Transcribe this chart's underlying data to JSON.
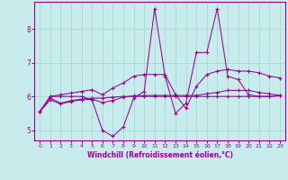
{
  "xlabel": "Windchill (Refroidissement éolien,°C)",
  "bg_color": "#c8ecec",
  "grid_color": "#a8d8d8",
  "line_color": "#990099",
  "xlim": [
    -0.5,
    23.5
  ],
  "ylim": [
    4.7,
    8.8
  ],
  "yticks": [
    5,
    6,
    7,
    8
  ],
  "xticks": [
    0,
    1,
    2,
    3,
    4,
    5,
    6,
    7,
    8,
    9,
    10,
    11,
    12,
    13,
    14,
    15,
    16,
    17,
    18,
    19,
    20,
    21,
    22,
    23
  ],
  "series1_x": [
    0,
    1,
    2,
    3,
    4,
    5,
    6,
    7,
    8,
    9,
    10,
    11,
    12,
    13,
    14,
    15,
    16,
    17,
    18,
    19,
    20,
    21,
    22,
    23
  ],
  "series1_y": [
    5.55,
    5.95,
    5.8,
    5.88,
    5.92,
    5.95,
    5.95,
    5.98,
    6.0,
    6.0,
    6.0,
    6.0,
    6.0,
    6.0,
    6.0,
    6.0,
    6.0,
    6.0,
    6.0,
    6.0,
    6.0,
    6.0,
    6.0,
    6.02
  ],
  "series2_x": [
    0,
    1,
    2,
    3,
    4,
    5,
    6,
    7,
    8,
    9,
    10,
    11,
    12,
    13,
    14,
    15,
    16,
    17,
    18,
    19,
    20,
    21,
    22,
    23
  ],
  "series2_y": [
    5.55,
    5.9,
    5.78,
    5.85,
    5.9,
    5.92,
    5.82,
    5.88,
    5.98,
    6.02,
    6.03,
    6.03,
    6.03,
    6.03,
    6.03,
    6.03,
    6.08,
    6.12,
    6.18,
    6.18,
    6.18,
    6.12,
    6.08,
    6.03
  ],
  "series3_x": [
    0,
    1,
    2,
    3,
    4,
    5,
    6,
    7,
    8,
    9,
    10,
    11,
    12,
    13,
    14,
    15,
    16,
    17,
    18,
    19,
    20,
    21,
    22,
    23
  ],
  "series3_y": [
    5.55,
    6.0,
    6.05,
    6.1,
    6.15,
    6.2,
    6.05,
    6.25,
    6.4,
    6.6,
    6.65,
    6.65,
    6.65,
    6.05,
    5.65,
    6.3,
    6.65,
    6.75,
    6.8,
    6.75,
    6.75,
    6.7,
    6.6,
    6.55
  ],
  "series4_x": [
    0,
    1,
    2,
    3,
    4,
    5,
    6,
    7,
    8,
    9,
    10,
    11,
    12,
    13,
    14,
    15,
    16,
    17,
    18,
    19,
    20,
    21,
    22,
    23
  ],
  "series4_y": [
    5.55,
    6.0,
    6.0,
    6.0,
    6.0,
    5.9,
    5.0,
    4.82,
    5.1,
    5.95,
    6.15,
    8.6,
    6.6,
    5.5,
    5.8,
    7.3,
    7.3,
    8.6,
    6.6,
    6.5,
    6.05,
    6.0,
    6.0,
    6.02
  ]
}
